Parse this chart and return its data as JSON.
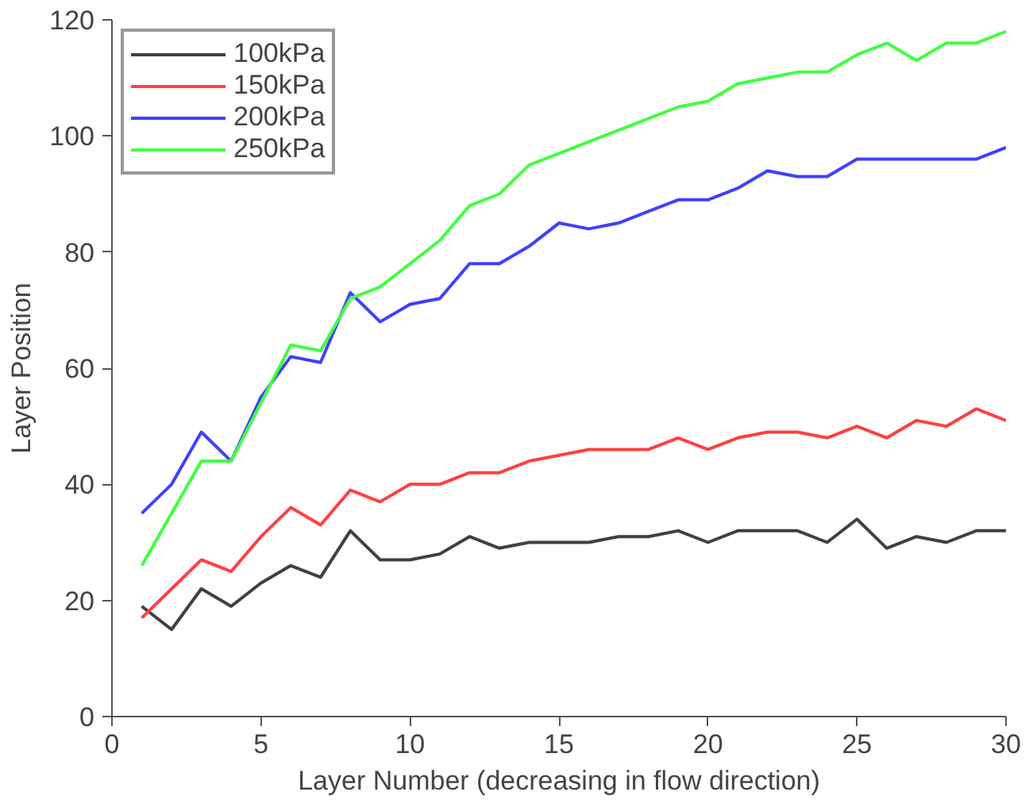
{
  "chart_data": {
    "type": "line",
    "xlabel": "Layer Number (decreasing in flow direction)",
    "ylabel": "Layer Position",
    "x": [
      1,
      2,
      3,
      4,
      5,
      6,
      7,
      8,
      9,
      10,
      11,
      12,
      13,
      14,
      15,
      16,
      17,
      18,
      19,
      20,
      21,
      22,
      23,
      24,
      25,
      26,
      27,
      28,
      29,
      30
    ],
    "series": [
      {
        "name": "100kPa",
        "color": "#404040",
        "values": [
          19,
          15,
          22,
          19,
          23,
          26,
          24,
          32,
          27,
          27,
          28,
          31,
          29,
          30,
          30,
          30,
          31,
          31,
          32,
          30,
          32,
          32,
          32,
          30,
          34,
          29,
          31,
          30,
          32,
          32
        ]
      },
      {
        "name": "150kPa",
        "color": "#ff4040",
        "values": [
          17,
          22,
          27,
          25,
          31,
          36,
          33,
          39,
          37,
          40,
          40,
          42,
          42,
          44,
          45,
          46,
          46,
          46,
          48,
          46,
          48,
          49,
          49,
          48,
          50,
          48,
          51,
          50,
          53,
          51
        ]
      },
      {
        "name": "200kPa",
        "color": "#4040ff",
        "values": [
          35,
          40,
          49,
          44,
          55,
          62,
          61,
          73,
          68,
          71,
          72,
          78,
          78,
          81,
          85,
          84,
          85,
          87,
          89,
          89,
          91,
          94,
          93,
          93,
          96,
          96,
          96,
          96,
          96,
          98
        ]
      },
      {
        "name": "250kPa",
        "color": "#40ff40",
        "values": [
          26,
          35,
          44,
          44,
          54,
          64,
          63,
          72,
          74,
          78,
          82,
          88,
          90,
          95,
          97,
          99,
          101,
          103,
          105,
          106,
          109,
          110,
          111,
          111,
          114,
          116,
          113,
          116,
          116,
          118
        ]
      }
    ],
    "xlim": [
      0,
      30
    ],
    "xticks": [
      0,
      5,
      10,
      15,
      20,
      25,
      30
    ],
    "ylim": [
      0,
      120
    ],
    "yticks": [
      0,
      20,
      40,
      60,
      80,
      100,
      120
    ],
    "grid": false,
    "legend": "top left",
    "marker": "none",
    "line_style": "solid"
  }
}
